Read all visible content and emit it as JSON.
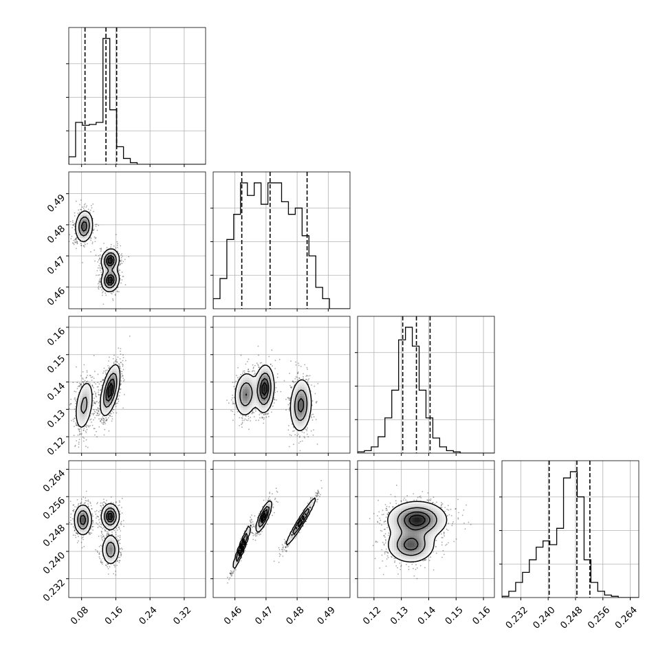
{
  "chart_data": {
    "type": "corner",
    "n_params": 4,
    "parameters": [
      {
        "range": [
          0.05,
          0.37
        ],
        "ticks": [
          0.08,
          0.16,
          0.24,
          0.32
        ],
        "tick_labels": [
          "0.08",
          "0.16",
          "0.24",
          "0.32"
        ],
        "quantiles": [
          0.088,
          0.137,
          0.162
        ],
        "modes": [
          {
            "mu": 0.086,
            "sd": 0.011,
            "w": 0.36
          },
          {
            "mu": 0.15,
            "sd": 0.012,
            "w": 0.64
          }
        ],
        "hist": [
          0.18,
          1.0,
          0.93,
          0.95,
          1.0,
          3.0,
          1.3,
          0.42,
          0.14,
          0.04,
          0,
          0,
          0,
          0,
          0,
          0,
          0,
          0,
          0,
          0
        ]
      },
      {
        "range": [
          0.453,
          0.497
        ],
        "ticks": [
          0.46,
          0.47,
          0.48,
          0.49
        ],
        "tick_labels": [
          "0.46",
          "0.47",
          "0.48",
          "0.49"
        ],
        "quantiles": [
          0.4622,
          0.4713,
          0.4832
        ],
        "hist": [
          0.08,
          0.24,
          0.55,
          0.75,
          1.0,
          0.9,
          1.0,
          0.83,
          1.0,
          1.0,
          0.85,
          0.75,
          0.8,
          0.58,
          0.42,
          0.17,
          0.08,
          0,
          0,
          0
        ]
      },
      {
        "range": [
          0.114,
          0.164
        ],
        "ticks": [
          0.12,
          0.13,
          0.14,
          0.15,
          0.16
        ],
        "tick_labels": [
          "0.12",
          "0.13",
          "0.14",
          "0.15",
          "0.16"
        ],
        "quantiles": [
          0.1305,
          0.1355,
          0.1405
        ],
        "hist": [
          0.01,
          0.02,
          0.05,
          0.13,
          0.28,
          0.5,
          0.9,
          1.0,
          0.85,
          0.5,
          0.28,
          0.12,
          0.05,
          0.02,
          0.01,
          0,
          0,
          0,
          0,
          0
        ]
      },
      {
        "range": [
          0.2265,
          0.2665
        ],
        "ticks": [
          0.232,
          0.24,
          0.248,
          0.256,
          0.264
        ],
        "tick_labels": [
          "0.232",
          "0.240",
          "0.248",
          "0.256",
          "0.264"
        ],
        "quantiles": [
          0.2403,
          0.2484,
          0.2522
        ],
        "hist": [
          0.01,
          0.05,
          0.12,
          0.2,
          0.3,
          0.4,
          0.45,
          0.42,
          0.55,
          0.95,
          1.0,
          0.8,
          0.3,
          0.12,
          0.05,
          0.02,
          0.01,
          0,
          0,
          0
        ]
      }
    ],
    "pairs": [
      {
        "row": 1,
        "col": 0,
        "modes": [
          {
            "mx": 0.086,
            "my": 0.4795,
            "sx": 0.01,
            "sy": 0.0025,
            "r": 0.1,
            "w": 0.36
          },
          {
            "mx": 0.147,
            "my": 0.4685,
            "sx": 0.01,
            "sy": 0.0018,
            "r": 0.1,
            "w": 0.32
          },
          {
            "mx": 0.147,
            "my": 0.4622,
            "sx": 0.01,
            "sy": 0.0018,
            "r": 0.1,
            "w": 0.32
          }
        ]
      },
      {
        "row": 2,
        "col": 0,
        "modes": [
          {
            "mx": 0.086,
            "my": 0.1315,
            "sx": 0.011,
            "sy": 0.0048,
            "r": 0.35,
            "w": 0.36
          },
          {
            "mx": 0.147,
            "my": 0.137,
            "sx": 0.011,
            "sy": 0.0045,
            "r": 0.55,
            "w": 0.64
          }
        ]
      },
      {
        "row": 3,
        "col": 0,
        "modes": [
          {
            "mx": 0.083,
            "my": 0.2492,
            "sx": 0.01,
            "sy": 0.0022,
            "r": 0.0,
            "w": 0.36
          },
          {
            "mx": 0.147,
            "my": 0.2502,
            "sx": 0.01,
            "sy": 0.0018,
            "r": 0.0,
            "w": 0.36
          },
          {
            "mx": 0.148,
            "my": 0.2405,
            "sx": 0.01,
            "sy": 0.0022,
            "r": 0.0,
            "w": 0.28
          }
        ]
      },
      {
        "row": 2,
        "col": 1,
        "modes": [
          {
            "mx": 0.4635,
            "my": 0.1355,
            "sx": 0.0018,
            "sy": 0.004,
            "r": 0.1,
            "w": 0.28
          },
          {
            "mx": 0.4695,
            "my": 0.1375,
            "sx": 0.0015,
            "sy": 0.0042,
            "r": 0.1,
            "w": 0.36
          },
          {
            "mx": 0.4812,
            "my": 0.1315,
            "sx": 0.0017,
            "sy": 0.0048,
            "r": 0.1,
            "w": 0.36
          }
        ]
      },
      {
        "row": 3,
        "col": 1,
        "modes": [
          {
            "mx": 0.4622,
            "my": 0.2412,
            "sx": 0.0014,
            "sy": 0.0032,
            "r": 0.95,
            "w": 0.3
          },
          {
            "mx": 0.4693,
            "my": 0.2502,
            "sx": 0.0012,
            "sy": 0.0022,
            "r": 0.8,
            "w": 0.34
          },
          {
            "mx": 0.4812,
            "my": 0.2487,
            "sx": 0.0024,
            "sy": 0.0035,
            "r": 0.97,
            "w": 0.36
          }
        ]
      },
      {
        "row": 3,
        "col": 2,
        "modes": [
          {
            "mx": 0.1358,
            "my": 0.2492,
            "sx": 0.0052,
            "sy": 0.0026,
            "r": 0.0,
            "w": 0.62
          },
          {
            "mx": 0.1335,
            "my": 0.2418,
            "sx": 0.0042,
            "sy": 0.0025,
            "r": 0.0,
            "w": 0.38
          }
        ]
      }
    ],
    "contour_levels": [
      0.118,
      0.393,
      0.675,
      0.865
    ],
    "grid": true,
    "xlabel": "",
    "ylabel": "",
    "title": ""
  }
}
